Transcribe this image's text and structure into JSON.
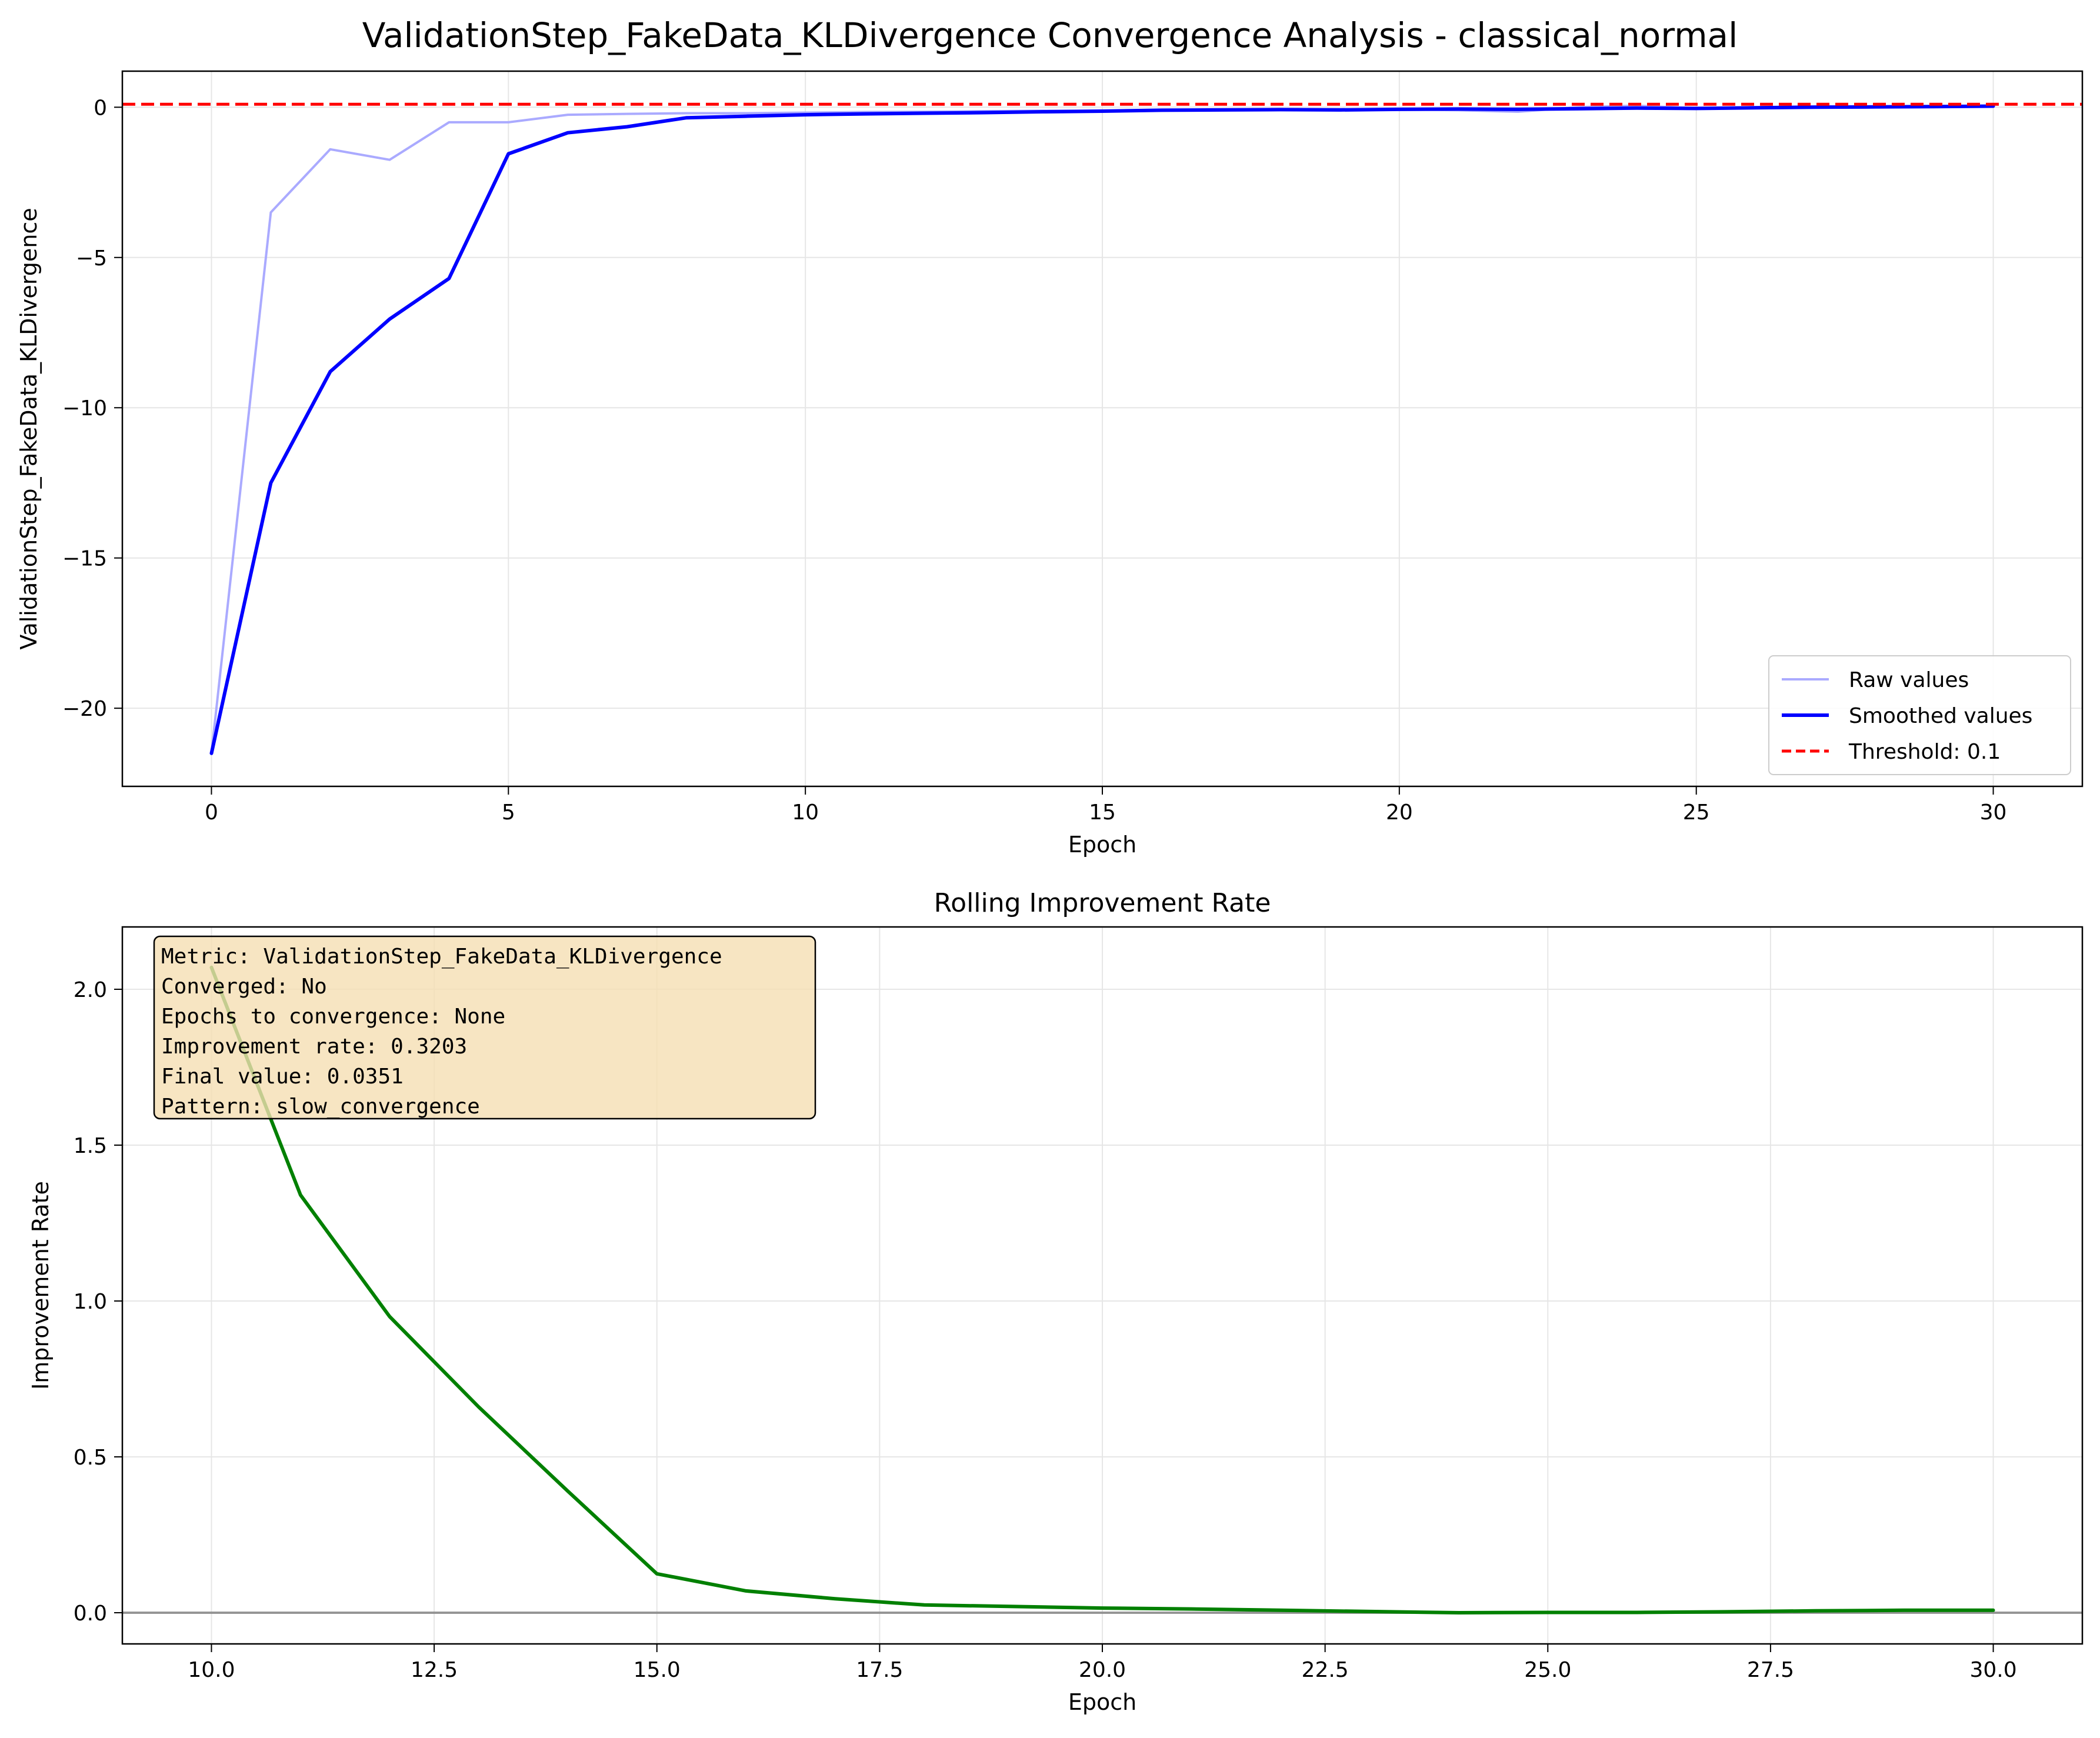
{
  "suptitle": "ValidationStep_FakeData_KLDivergence Convergence Analysis - classical_normal",
  "colors": {
    "raw": "#aaaaff",
    "smoothed": "#0000ff",
    "threshold": "#ff0000",
    "improvement": "#008000",
    "zero_line": "#808080",
    "grid": "#e6e6e6",
    "infobox_fill": "#f5deb3"
  },
  "chart_data": [
    {
      "type": "line",
      "title": "",
      "xlabel": "Epoch",
      "ylabel": "ValidationStep_FakeData_KLDivergence",
      "xlim": [
        -1.5,
        31.5
      ],
      "ylim": [
        -22.6,
        1.2
      ],
      "xticks": [
        0,
        5,
        10,
        15,
        20,
        25,
        30
      ],
      "xtick_labels": [
        "0",
        "5",
        "10",
        "15",
        "20",
        "25",
        "30"
      ],
      "yticks": [
        0,
        -5,
        -10,
        -15,
        -20
      ],
      "ytick_labels": [
        "0",
        "−5",
        "−10",
        "−15",
        "−20"
      ],
      "grid": true,
      "legend_position": "lower-right",
      "x": [
        0,
        1,
        2,
        3,
        4,
        5,
        6,
        7,
        8,
        9,
        10,
        11,
        12,
        13,
        14,
        15,
        16,
        17,
        18,
        19,
        20,
        21,
        22,
        23,
        24,
        25,
        26,
        27,
        28,
        29,
        30
      ],
      "series": [
        {
          "name": "Raw values",
          "color": "#aaaaff",
          "values": [
            -21.5,
            -3.5,
            -1.4,
            -1.75,
            -0.5,
            -0.5,
            -0.25,
            -0.22,
            -0.2,
            -0.2,
            -0.18,
            -0.16,
            -0.15,
            -0.13,
            -0.12,
            -0.12,
            -0.1,
            -0.09,
            -0.08,
            -0.07,
            -0.07,
            -0.1,
            -0.15,
            0.0,
            0.05,
            -0.03,
            0.0,
            0.03,
            0.02,
            0.01,
            0.04
          ]
        },
        {
          "name": "Smoothed values",
          "color": "#0000ff",
          "values": [
            -21.5,
            -12.5,
            -8.8,
            -7.05,
            -5.7,
            -1.55,
            -0.85,
            -0.65,
            -0.35,
            -0.3,
            -0.25,
            -0.22,
            -0.2,
            -0.18,
            -0.15,
            -0.13,
            -0.1,
            -0.09,
            -0.08,
            -0.09,
            -0.07,
            -0.06,
            -0.07,
            -0.05,
            -0.03,
            -0.04,
            -0.02,
            0.0,
            0.01,
            0.02,
            0.035
          ]
        }
      ],
      "threshold": {
        "name": "Threshold: 0.1",
        "value": 0.1,
        "color": "#ff0000"
      }
    },
    {
      "type": "line",
      "title": "Rolling Improvement Rate",
      "xlabel": "Epoch",
      "ylabel": "Improvement Rate",
      "xlim": [
        9.0,
        31.0
      ],
      "ylim": [
        -0.1,
        2.2
      ],
      "xticks": [
        10.0,
        12.5,
        15.0,
        17.5,
        20.0,
        22.5,
        25.0,
        27.5,
        30.0
      ],
      "xtick_labels": [
        "10.0",
        "12.5",
        "15.0",
        "17.5",
        "20.0",
        "22.5",
        "25.0",
        "27.5",
        "30.0"
      ],
      "yticks": [
        0.0,
        0.5,
        1.0,
        1.5,
        2.0
      ],
      "ytick_labels": [
        "0.0",
        "0.5",
        "1.0",
        "1.5",
        "2.0"
      ],
      "grid": true,
      "x": [
        10,
        11,
        12,
        13,
        14,
        15,
        16,
        17,
        18,
        19,
        20,
        21,
        22,
        23,
        24,
        25,
        26,
        27,
        28,
        29,
        30
      ],
      "series": [
        {
          "name": "",
          "color": "#008000",
          "values": [
            2.07,
            1.34,
            0.95,
            0.66,
            0.39,
            0.125,
            0.07,
            0.045,
            0.025,
            0.02,
            0.015,
            0.012,
            0.008,
            0.004,
            0.0,
            0.001,
            0.001,
            0.003,
            0.006,
            0.008,
            0.008
          ]
        }
      ],
      "zero_line": 0.0,
      "info_lines": [
        "Metric: ValidationStep_FakeData_KLDivergence",
        "Converged: No",
        "Epochs to convergence: None",
        "Improvement rate: 0.3203",
        "Final value: 0.0351",
        "Pattern: slow_convergence"
      ]
    }
  ]
}
